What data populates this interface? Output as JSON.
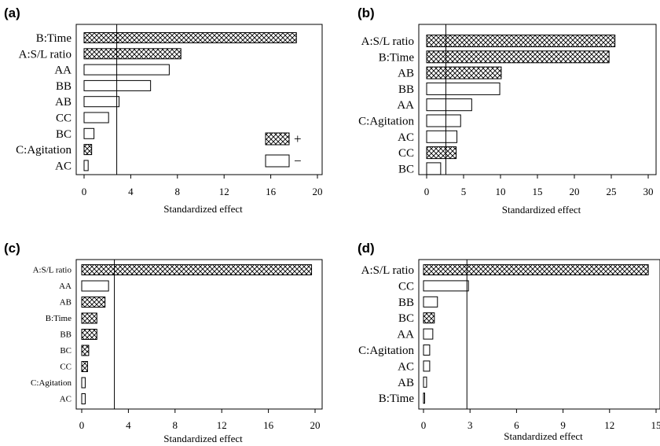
{
  "chart_data": [
    {
      "panel": "(a)",
      "type": "bar",
      "orientation": "horizontal",
      "xlabel": "Standardized effect",
      "xlim": [
        0,
        20
      ],
      "xticks": [
        0,
        4,
        8,
        12,
        16,
        20
      ],
      "reference_line": 2.8,
      "categories": [
        "B:Time",
        "A:S/L ratio",
        "AA",
        "BB",
        "AB",
        "CC",
        "BC",
        "C:Agitation",
        "AC"
      ],
      "values": [
        18.2,
        8.3,
        7.3,
        5.7,
        3.0,
        2.1,
        0.85,
        0.65,
        0.35
      ],
      "signs": [
        "+",
        "+",
        "-",
        "-",
        "-",
        "-",
        "-",
        "+",
        "-"
      ],
      "legend": {
        "entries": [
          {
            "sign": "+",
            "label": "+"
          },
          {
            "sign": "-",
            "label": "−"
          }
        ],
        "placement": "right"
      }
    },
    {
      "panel": "(b)",
      "type": "bar",
      "orientation": "horizontal",
      "xlabel": "Standardized effect",
      "xlim": [
        0,
        30
      ],
      "xticks": [
        0,
        5,
        10,
        15,
        20,
        25,
        30
      ],
      "reference_line": 2.6,
      "categories": [
        "A:S/L ratio",
        "B:Time",
        "AB",
        "BB",
        "AA",
        "C:Agitation",
        "AC",
        "CC",
        "BC"
      ],
      "values": [
        25.5,
        24.7,
        10.1,
        9.9,
        6.1,
        4.6,
        4.1,
        4.0,
        1.9
      ],
      "signs": [
        "+",
        "+",
        "+",
        "-",
        "-",
        "-",
        "-",
        "+",
        "-"
      ]
    },
    {
      "panel": "(c)",
      "type": "bar",
      "orientation": "horizontal",
      "xlabel": "Standardized effect",
      "xlim": [
        0,
        20
      ],
      "xticks": [
        0,
        4,
        8,
        12,
        16,
        20
      ],
      "reference_line": 2.8,
      "categories": [
        "A:S/L ratio",
        "AA",
        "AB",
        "B:Time",
        "BB",
        "BC",
        "CC",
        "C:Agitation",
        "AC"
      ],
      "values": [
        19.7,
        2.3,
        2.0,
        1.3,
        1.3,
        0.6,
        0.5,
        0.3,
        0.3
      ],
      "signs": [
        "+",
        "-",
        "+",
        "+",
        "+",
        "+",
        "+",
        "-",
        "-"
      ]
    },
    {
      "panel": "(d)",
      "type": "bar",
      "orientation": "horizontal",
      "xlabel": "Standardized effect",
      "xlim": [
        0,
        15
      ],
      "xticks": [
        0,
        3,
        6,
        9,
        12,
        15
      ],
      "reference_line": 2.8,
      "categories": [
        "A:S/L ratio",
        "CC",
        "BB",
        "BC",
        "AA",
        "C:Agitation",
        "AC",
        "AB",
        "B:Time"
      ],
      "values": [
        14.5,
        2.9,
        0.9,
        0.7,
        0.6,
        0.4,
        0.4,
        0.2,
        0.05
      ],
      "signs": [
        "+",
        "-",
        "-",
        "+",
        "-",
        "-",
        "-",
        "-",
        "-"
      ]
    }
  ]
}
